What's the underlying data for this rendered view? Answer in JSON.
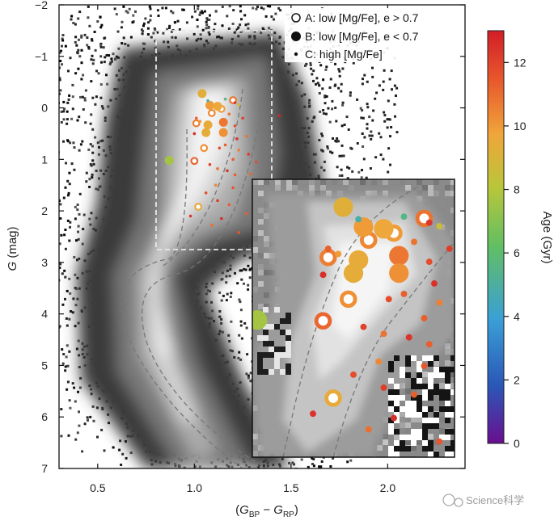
{
  "chart_data": {
    "type": "scatter",
    "title": "",
    "xlabel": "(G_BP − G_RP)",
    "ylabel": "G (mag)",
    "xlim": [
      0.3,
      2.4
    ],
    "ylim": [
      7,
      -2
    ],
    "x_ticks": [
      0.5,
      1.0,
      1.5,
      2.0
    ],
    "x_tick_labels": [
      "0.5",
      "1.0",
      "1.5",
      "2.0"
    ],
    "y_ticks": [
      -2,
      -1,
      0,
      1,
      2,
      3,
      4,
      5,
      6,
      7
    ],
    "y_tick_labels": [
      "−2",
      "−1",
      "0",
      "1",
      "2",
      "3",
      "4",
      "5",
      "6",
      "7"
    ],
    "y_inverted": true,
    "background": "greyscale density of stars",
    "legend_position": "top-right",
    "legend": [
      {
        "symbol": "open-circle",
        "text": "A: low [Mg/Fe], e > 0.7"
      },
      {
        "symbol": "filled-circle",
        "text": "B: low [Mg/Fe], e < 0.7"
      },
      {
        "symbol": "small-dot",
        "text": "C: high [Mg/Fe]"
      }
    ],
    "colorbar": {
      "label": "Age (Gyr)",
      "range": [
        0,
        13
      ],
      "ticks": [
        0,
        2,
        4,
        6,
        8,
        10,
        12
      ],
      "tick_labels": [
        "0",
        "2",
        "4",
        "6",
        "8",
        "10",
        "12"
      ],
      "colors": [
        "#6a0f8f",
        "#2a57b8",
        "#3a9fd6",
        "#62bf62",
        "#b9c63a",
        "#f0a53a",
        "#e8582c",
        "#d21e28"
      ]
    },
    "zoom_box": {
      "x": [
        0.8,
        1.4
      ],
      "y": [
        -1.5,
        2.75
      ]
    },
    "inset_axes": {
      "x": [
        0.3,
        2.4
      ],
      "y": [
        -1.5,
        2.75
      ]
    },
    "series": [
      {
        "name": "A: low [Mg/Fe], e > 0.7",
        "marker": "open-circle",
        "points": [
          {
            "x": 1.09,
            "y": 0.1,
            "age": 10.0
          },
          {
            "x": 1.14,
            "y": 0.02,
            "age": 9.5
          },
          {
            "x": 1.2,
            "y": -0.15,
            "age": 10.5
          },
          {
            "x": 1.01,
            "y": 0.3,
            "age": 10.2
          },
          {
            "x": 1.05,
            "y": 0.78,
            "age": 9.8
          },
          {
            "x": 1.0,
            "y": 1.03,
            "age": 10.8
          },
          {
            "x": 1.02,
            "y": 1.92,
            "age": 9.0
          }
        ]
      },
      {
        "name": "B: low [Mg/Fe], e < 0.7",
        "marker": "filled-circle",
        "points": [
          {
            "x": 1.04,
            "y": -0.28,
            "age": 8.7
          },
          {
            "x": 1.08,
            "y": -0.05,
            "age": 9.5
          },
          {
            "x": 1.12,
            "y": -0.03,
            "age": 9.2
          },
          {
            "x": 1.07,
            "y": 0.33,
            "age": 9.0
          },
          {
            "x": 1.15,
            "y": 0.28,
            "age": 10.4
          },
          {
            "x": 1.06,
            "y": 0.48,
            "age": 8.9
          },
          {
            "x": 1.15,
            "y": 0.48,
            "age": 9.8
          },
          {
            "x": 0.87,
            "y": 1.02,
            "age": 7.0
          }
        ]
      },
      {
        "name": "C: high [Mg/Fe]",
        "marker": "small-dot",
        "points": [
          {
            "x": 1.21,
            "y": -0.1,
            "age": 12.2
          },
          {
            "x": 1.16,
            "y": -0.17,
            "age": 5.0
          },
          {
            "x": 1.07,
            "y": -0.14,
            "age": 4.5
          },
          {
            "x": 1.23,
            "y": -0.06,
            "age": 8.0
          },
          {
            "x": 1.0,
            "y": 0.5,
            "age": 12.5
          },
          {
            "x": 1.01,
            "y": 0.2,
            "age": 11.0
          },
          {
            "x": 1.03,
            "y": 0.26,
            "age": 9.5
          },
          {
            "x": 1.18,
            "y": 0.12,
            "age": 10.5
          },
          {
            "x": 1.21,
            "y": 0.35,
            "age": 11.5
          },
          {
            "x": 1.25,
            "y": 0.2,
            "age": 12.0
          },
          {
            "x": 1.27,
            "y": 0.55,
            "age": 10.5
          },
          {
            "x": 1.22,
            "y": 0.6,
            "age": 12.4
          },
          {
            "x": 1.16,
            "y": 0.72,
            "age": 11.0
          },
          {
            "x": 1.13,
            "y": 0.78,
            "age": 11.5
          },
          {
            "x": 1.23,
            "y": 0.82,
            "age": 10.2
          },
          {
            "x": 1.28,
            "y": 0.9,
            "age": 12.0
          },
          {
            "x": 1.2,
            "y": 1.0,
            "age": 11.0
          },
          {
            "x": 1.08,
            "y": 1.1,
            "age": 11.8
          },
          {
            "x": 1.12,
            "y": 1.18,
            "age": 10.5
          },
          {
            "x": 1.17,
            "y": 1.22,
            "age": 12.3
          },
          {
            "x": 1.21,
            "y": 1.3,
            "age": 11.0
          },
          {
            "x": 1.29,
            "y": 1.28,
            "age": 10.8
          },
          {
            "x": 1.32,
            "y": 1.05,
            "age": 11.5
          },
          {
            "x": 1.11,
            "y": 1.5,
            "age": 10.0
          },
          {
            "x": 1.2,
            "y": 1.55,
            "age": 11.2
          },
          {
            "x": 1.06,
            "y": 1.65,
            "age": 11.5
          },
          {
            "x": 1.12,
            "y": 1.8,
            "age": 12.0
          },
          {
            "x": 1.18,
            "y": 1.88,
            "age": 11.0
          },
          {
            "x": 0.98,
            "y": 2.1,
            "age": 12.3
          },
          {
            "x": 1.09,
            "y": 2.28,
            "age": 10.6
          },
          {
            "x": 1.27,
            "y": 2.05,
            "age": 11.0
          },
          {
            "x": 1.14,
            "y": 2.15,
            "age": 12.5
          },
          {
            "x": 1.23,
            "y": 2.42,
            "age": 11.2
          },
          {
            "x": 1.44,
            "y": 0.15,
            "age": 12.8
          }
        ]
      }
    ]
  },
  "watermark": "Science科学"
}
